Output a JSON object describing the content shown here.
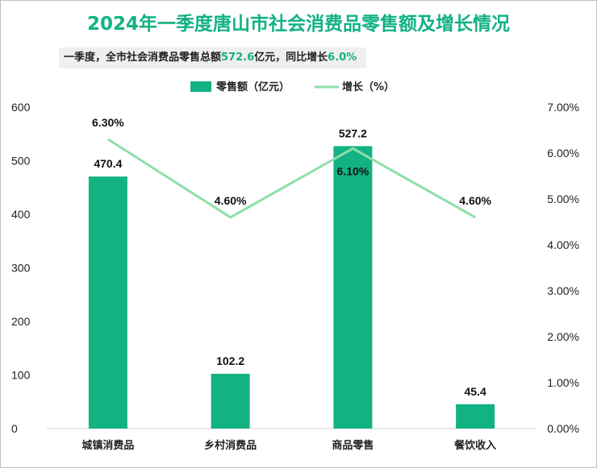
{
  "title": "2024年一季度唐山市社会消费品零售额及增长情况",
  "subtitle": {
    "prefix": "一季度，全市社会消费品零售总额",
    "total": "572.6",
    "mid": "亿元，同比增长",
    "growth": "6.0%"
  },
  "chart_data": {
    "type": "bar",
    "categories": [
      "城镇消费品",
      "乡村消费品",
      "商品零售",
      "餐饮收入"
    ],
    "series": [
      {
        "name": "零售额（亿元）",
        "type": "bar",
        "axis": "left",
        "values": [
          470.4,
          102.2,
          527.2,
          45.4
        ],
        "labels": [
          "470.4",
          "102.2",
          "527.2",
          "45.4"
        ],
        "color": "#12b283"
      },
      {
        "name": "增长（%）",
        "type": "line",
        "axis": "right",
        "values": [
          6.3,
          4.6,
          6.1,
          4.6
        ],
        "labels": [
          "6.30%",
          "4.60%",
          "6.10%",
          "4.60%"
        ],
        "color": "#8ddfa8"
      }
    ],
    "y_left": {
      "min": 0,
      "max": 600,
      "ticks": [
        "0",
        "100",
        "200",
        "300",
        "400",
        "500",
        "600"
      ]
    },
    "y_right": {
      "min": 0,
      "max": 7,
      "ticks": [
        "0.00%",
        "1.00%",
        "2.00%",
        "3.00%",
        "4.00%",
        "5.00%",
        "6.00%",
        "7.00%"
      ]
    },
    "legend_position": "top-center",
    "grid": false
  }
}
